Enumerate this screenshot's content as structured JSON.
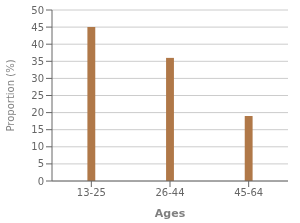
{
  "chart_data": {
    "type": "bar",
    "categories": [
      "13-25",
      "26-44",
      "45-64"
    ],
    "values": [
      45,
      36,
      19
    ],
    "color": "#b07848",
    "xlabel": "Ages",
    "ylabel": "Proportion (%)",
    "ylim": [
      0,
      50
    ],
    "yticks": [
      0,
      5,
      10,
      15,
      20,
      25,
      30,
      35,
      40,
      45,
      50
    ],
    "grid": true
  }
}
